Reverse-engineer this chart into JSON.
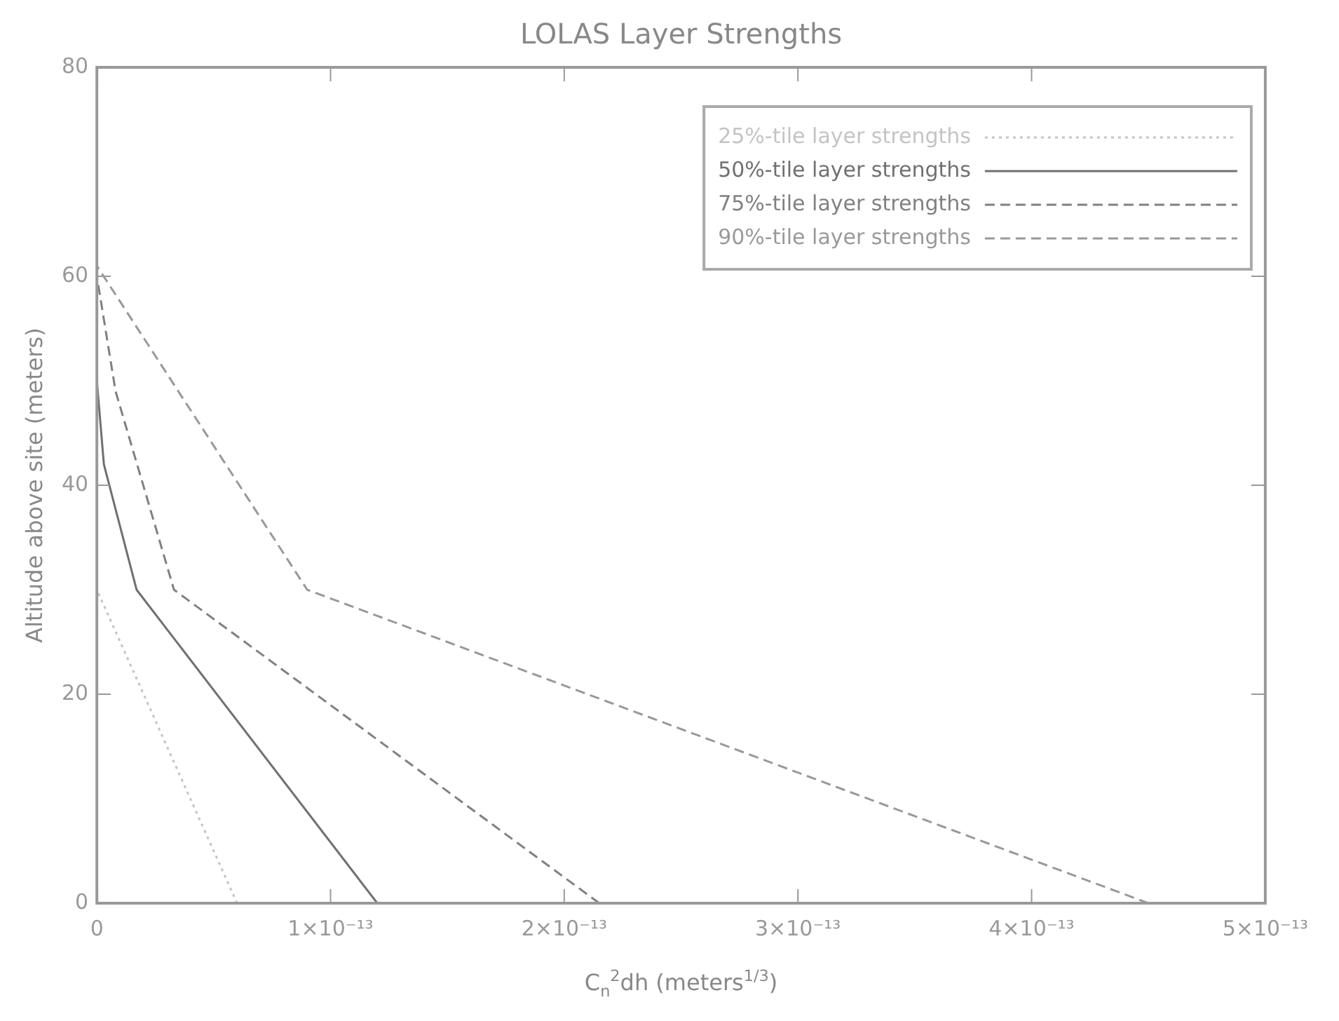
{
  "chart_data": {
    "type": "line",
    "title": "LOLAS Layer Strengths",
    "xlabel": "C$_{n}$$^{2}$dh (meters$^{1/3}$)",
    "ylabel": "Altitude above site (meters)",
    "xlim": [
      0,
      5e-13
    ],
    "xticks": [
      0,
      {
        "value": 1e-13,
        "label": "1×10⁻¹³"
      },
      {
        "value": 2e-13,
        "label": "2×10⁻¹³"
      },
      {
        "value": 3e-13,
        "label": "3×10⁻¹³"
      },
      {
        "value": 4e-13,
        "label": "4×10⁻¹³"
      },
      {
        "value": 5e-13,
        "label": "5×10⁻¹³"
      }
    ],
    "ylim": [
      0,
      80
    ],
    "yticks": [
      0,
      20,
      40,
      60,
      80
    ],
    "grid": false,
    "legend": "top right",
    "marker": "none",
    "series": [
      {
        "name": "25%-tile layer strengths",
        "color": "#c4c4c4",
        "line_style": "dotted",
        "x": [
          6e-14,
          0
        ],
        "values": [
          0,
          30
        ]
      },
      {
        "name": "50%-tile layer strengths",
        "color": "#707070",
        "line_style": "solid",
        "x": [
          1.2e-13,
          1.7e-14,
          3e-15,
          0
        ],
        "values": [
          0,
          30,
          42,
          50
        ]
      },
      {
        "name": "75%-tile layer strengths",
        "color": "#808080",
        "line_style": "dashed",
        "x": [
          2.15e-13,
          3.3e-14,
          8e-15,
          0
        ],
        "values": [
          0,
          30,
          49,
          60
        ]
      },
      {
        "name": "90%-tile layer strengths",
        "color": "#999999",
        "line_style": "dashed",
        "x": [
          4.5e-13,
          9e-14,
          0
        ],
        "values": [
          0,
          30,
          61
        ]
      }
    ]
  }
}
